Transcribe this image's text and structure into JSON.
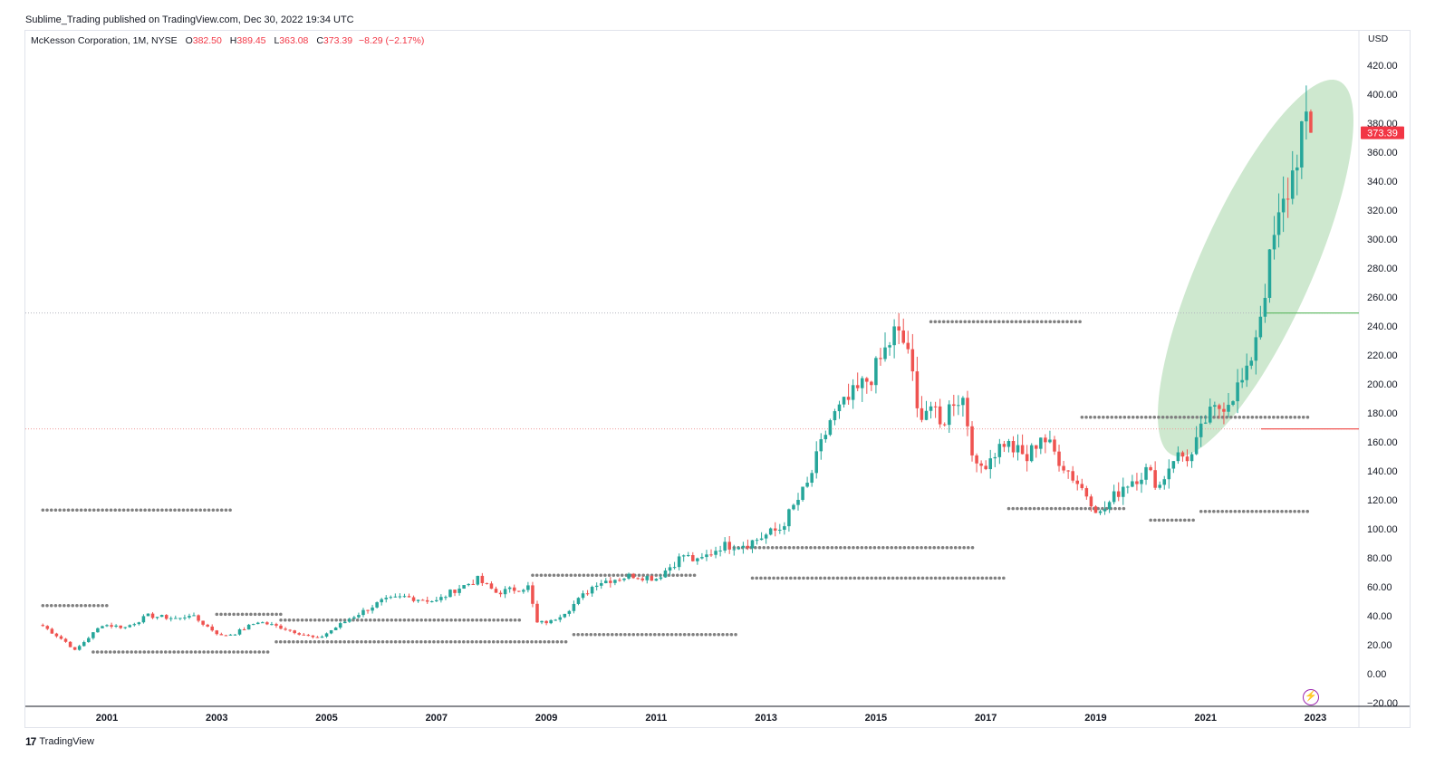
{
  "header": {
    "publisher": "Sublime_Trading published on TradingView.com, Dec 30, 2022 19:34 UTC"
  },
  "legend": {
    "symbol": "McKesson Corporation, 1M, NYSE",
    "open_label": "O",
    "open": "382.50",
    "high_label": "H",
    "high": "389.45",
    "low_label": "L",
    "low": "363.08",
    "close_label": "C",
    "close": "373.39",
    "change": "−8.29 (−2.17%)"
  },
  "currency": "USD",
  "footer": {
    "logo": "17",
    "brand": "TradingView"
  },
  "colors": {
    "up": "#26a69a",
    "down": "#ef5350",
    "dots": "#808080",
    "ellipse": "#a5d6a7"
  },
  "icons": {
    "replay": "lightning-circle-icon"
  },
  "chart_data": {
    "type": "candlestick",
    "title": "McKesson Corporation, 1M, NYSE",
    "ylim": [
      -20,
      420
    ],
    "y_ticks": [
      "420.00",
      "400.00",
      "380.00",
      "360.00",
      "340.00",
      "320.00",
      "300.00",
      "280.00",
      "260.00",
      "240.00",
      "220.00",
      "200.00",
      "180.00",
      "160.00",
      "140.00",
      "120.00",
      "100.00",
      "80.00",
      "60.00",
      "40.00",
      "20.00",
      "0.00",
      "−20.00"
    ],
    "x_ticks": [
      "2001",
      "2003",
      "2005",
      "2007",
      "2009",
      "2011",
      "2013",
      "2015",
      "2017",
      "2019",
      "2021",
      "2023"
    ],
    "last_price": "373.39",
    "x_start": "1999-11",
    "x_end": "2023-07",
    "anchors": [
      [
        "1999-11",
        33
      ],
      [
        "2000-04",
        22
      ],
      [
        "2000-06",
        16
      ],
      [
        "2000-12",
        34
      ],
      [
        "2001-05",
        32
      ],
      [
        "2001-10",
        40
      ],
      [
        "2002-05",
        38
      ],
      [
        "2002-07",
        41
      ],
      [
        "2003-02",
        26
      ],
      [
        "2003-05",
        28
      ],
      [
        "2003-10",
        36
      ],
      [
        "2004-03",
        32
      ],
      [
        "2004-07",
        28
      ],
      [
        "2004-11",
        24
      ],
      [
        "2005-06",
        38
      ],
      [
        "2006-01",
        50
      ],
      [
        "2006-06",
        53
      ],
      [
        "2007-01",
        50
      ],
      [
        "2007-05",
        58
      ],
      [
        "2007-10",
        65
      ],
      [
        "2008-02",
        56
      ],
      [
        "2008-09",
        60
      ],
      [
        "2008-11",
        35
      ],
      [
        "2009-02",
        36
      ],
      [
        "2009-06",
        45
      ],
      [
        "2009-12",
        63
      ],
      [
        "2010-08",
        68
      ],
      [
        "2011-01",
        66
      ],
      [
        "2011-07",
        82
      ],
      [
        "2011-10",
        77
      ],
      [
        "2012-03",
        88
      ],
      [
        "2012-09",
        90
      ],
      [
        "2013-04",
        100
      ],
      [
        "2013-10",
        130
      ],
      [
        "2014-03",
        175
      ],
      [
        "2014-09",
        195
      ],
      [
        "2015-01",
        210
      ],
      [
        "2015-05",
        235
      ],
      [
        "2015-08",
        225
      ],
      [
        "2015-10",
        180
      ],
      [
        "2016-01",
        185
      ],
      [
        "2016-03",
        170
      ],
      [
        "2016-06",
        190
      ],
      [
        "2016-08",
        190
      ],
      [
        "2016-11",
        140
      ],
      [
        "2017-05",
        160
      ],
      [
        "2017-10",
        148
      ],
      [
        "2018-01",
        165
      ],
      [
        "2018-07",
        140
      ],
      [
        "2018-12",
        120
      ],
      [
        "2019-02",
        110
      ],
      [
        "2019-07",
        130
      ],
      [
        "2019-12",
        140
      ],
      [
        "2020-03",
        130
      ],
      [
        "2020-06",
        150
      ],
      [
        "2020-10",
        150
      ],
      [
        "2021-01",
        175
      ],
      [
        "2021-06",
        190
      ],
      [
        "2021-10",
        205
      ],
      [
        "2022-01",
        250
      ],
      [
        "2022-04",
        300
      ],
      [
        "2022-08",
        345
      ],
      [
        "2022-10",
        375
      ],
      [
        "2022-12",
        373.39
      ]
    ],
    "level_lines": [
      {
        "value": 249,
        "style": "dotted",
        "color": "#b2b5be"
      },
      {
        "value": 169,
        "style": "dotted",
        "color": "#ef9a9a"
      }
    ],
    "dot_levels": [
      {
        "from": "1999-11",
        "to": "2003-04",
        "value": 113
      },
      {
        "from": "1999-11",
        "to": "2001-01",
        "value": 47
      },
      {
        "from": "2000-10",
        "to": "2004-01",
        "value": 15
      },
      {
        "from": "2003-01",
        "to": "2004-03",
        "value": 41
      },
      {
        "from": "2004-03",
        "to": "2008-08",
        "value": 37
      },
      {
        "from": "2004-02",
        "to": "2009-06",
        "value": 22
      },
      {
        "from": "2008-10",
        "to": "2011-10",
        "value": 68
      },
      {
        "from": "2009-07",
        "to": "2012-07",
        "value": 27
      },
      {
        "from": "2012-06",
        "to": "2016-11",
        "value": 87
      },
      {
        "from": "2012-10",
        "to": "2017-05",
        "value": 66
      },
      {
        "from": "2016-01",
        "to": "2018-10",
        "value": 243
      },
      {
        "from": "2017-06",
        "to": "2019-08",
        "value": 114
      },
      {
        "from": "2018-10",
        "to": "2022-12",
        "value": 177
      },
      {
        "from": "2020-01",
        "to": "2020-11",
        "value": 106
      },
      {
        "from": "2020-12",
        "to": "2022-12",
        "value": 112
      }
    ]
  }
}
